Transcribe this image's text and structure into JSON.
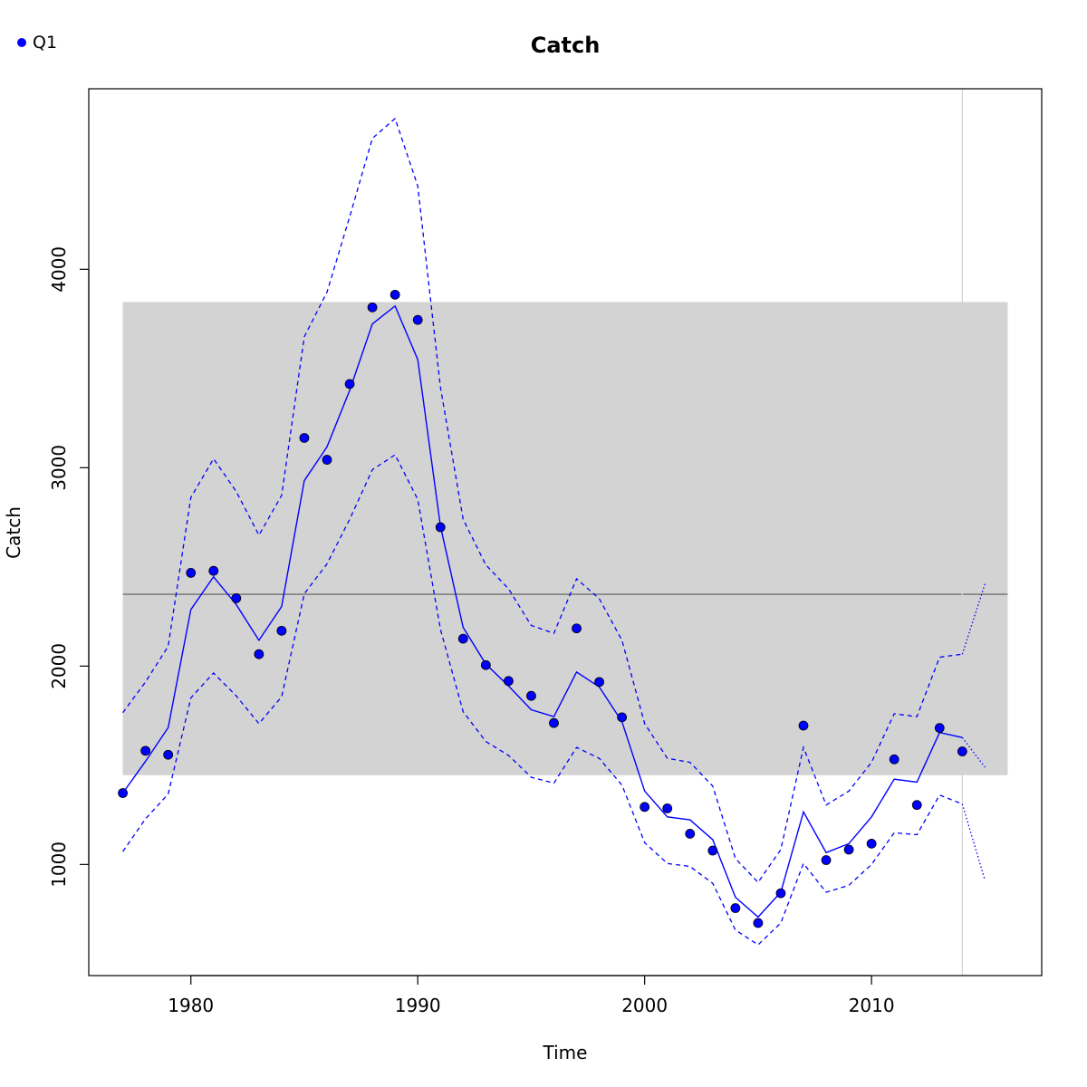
{
  "chart_data": {
    "type": "line",
    "title": "Catch",
    "xlabel": "Time",
    "ylabel": "Catch",
    "xlim": [
      1975.5,
      2017.5
    ],
    "ylim": [
      440,
      4910
    ],
    "x_ticks": [
      1980,
      1990,
      2000,
      2010
    ],
    "y_ticks": [
      1000,
      2000,
      3000,
      4000
    ],
    "legend": {
      "position": "top-left",
      "entries": [
        {
          "label": "Q1",
          "color": "#0000ff",
          "marker": "point"
        }
      ]
    },
    "reference_band": {
      "x_range": [
        1977,
        2016
      ],
      "y_range": [
        1450,
        3835
      ],
      "color": "#d3d3d3"
    },
    "reference_line": {
      "x_range": [
        1977,
        2016
      ],
      "y": 2362,
      "color": "#808080"
    },
    "vertical_line": {
      "x": 2014,
      "color": "#d3d3d3"
    },
    "colors": {
      "series": "#0000ff",
      "band": "#d3d3d3",
      "ref_line": "#808080"
    },
    "series": [
      {
        "role": "observed",
        "type": "scatter",
        "color": "#0000ff",
        "x": [
          1977,
          1978,
          1979,
          1980,
          1981,
          1982,
          1983,
          1984,
          1985,
          1986,
          1987,
          1988,
          1989,
          1990,
          1991,
          1992,
          1993,
          1994,
          1995,
          1996,
          1997,
          1998,
          1999,
          2000,
          2001,
          2002,
          2003,
          2004,
          2005,
          2006,
          2007,
          2008,
          2009,
          2010,
          2011,
          2012,
          2013,
          2014
        ],
        "y": [
          1360,
          1573,
          1553,
          2470,
          2480,
          2342,
          2060,
          2178,
          3150,
          3040,
          3422,
          3808,
          3872,
          3745,
          2700,
          2138,
          2005,
          1925,
          1850,
          1713,
          2190,
          1920,
          1742,
          1290,
          1283,
          1155,
          1070,
          780,
          705,
          855,
          1700,
          1022,
          1075,
          1105,
          1530,
          1300,
          1688,
          1570
        ]
      },
      {
        "role": "fitted",
        "type": "line",
        "style": "solid",
        "color": "#0000ff",
        "x": [
          1977,
          1978,
          1979,
          1980,
          1981,
          1982,
          1983,
          1984,
          1985,
          1986,
          1987,
          1988,
          1989,
          1990,
          1991,
          1992,
          1993,
          1994,
          1995,
          1996,
          1997,
          1998,
          1999,
          2000,
          2001,
          2002,
          2003,
          2004,
          2005,
          2006,
          2007,
          2008,
          2009,
          2010,
          2011,
          2012,
          2013,
          2014
        ],
        "y": [
          1360,
          1520,
          1690,
          2285,
          2450,
          2310,
          2130,
          2300,
          2935,
          3105,
          3390,
          3725,
          3815,
          3545,
          2705,
          2195,
          2010,
          1900,
          1780,
          1745,
          1970,
          1895,
          1720,
          1370,
          1240,
          1225,
          1125,
          835,
          735,
          860,
          1265,
          1060,
          1105,
          1240,
          1430,
          1415,
          1665,
          1640
        ]
      },
      {
        "role": "upper",
        "type": "line",
        "style": "dashed",
        "color": "#0000ff",
        "x": [
          1977,
          1978,
          1979,
          1980,
          1981,
          1982,
          1983,
          1984,
          1985,
          1986,
          1987,
          1988,
          1989,
          1990,
          1991,
          1992,
          1993,
          1994,
          1995,
          1996,
          1997,
          1998,
          1999,
          2000,
          2001,
          2002,
          2003,
          2004,
          2005,
          2006,
          2007,
          2008,
          2009,
          2010,
          2011,
          2012,
          2013,
          2014
        ],
        "y": [
          1765,
          1920,
          2100,
          2850,
          3045,
          2880,
          2660,
          2860,
          3660,
          3885,
          4265,
          4660,
          4760,
          4420,
          3405,
          2740,
          2510,
          2390,
          2205,
          2165,
          2440,
          2340,
          2130,
          1710,
          1535,
          1515,
          1395,
          1030,
          910,
          1075,
          1590,
          1300,
          1370,
          1515,
          1760,
          1745,
          2045,
          2060
        ]
      },
      {
        "role": "lower",
        "type": "line",
        "style": "dashed",
        "color": "#0000ff",
        "x": [
          1977,
          1978,
          1979,
          1980,
          1981,
          1982,
          1983,
          1984,
          1985,
          1986,
          1987,
          1988,
          1989,
          1990,
          1991,
          1992,
          1993,
          1994,
          1995,
          1996,
          1997,
          1998,
          1999,
          2000,
          2001,
          2002,
          2003,
          2004,
          2005,
          2006,
          2007,
          2008,
          2009,
          2010,
          2011,
          2012,
          2013,
          2014
        ],
        "y": [
          1065,
          1230,
          1355,
          1840,
          1965,
          1850,
          1710,
          1845,
          2365,
          2515,
          2740,
          2990,
          3065,
          2840,
          2185,
          1770,
          1620,
          1550,
          1440,
          1410,
          1590,
          1535,
          1400,
          1110,
          1005,
          990,
          905,
          670,
          595,
          705,
          1005,
          860,
          895,
          1000,
          1160,
          1150,
          1350,
          1305
        ]
      },
      {
        "role": "projection",
        "type": "line",
        "style": "dotted",
        "color": "#0000ff",
        "x": [
          2014,
          2015
        ],
        "y": [
          1640,
          1490
        ],
        "upper": [
          2060,
          2415
        ],
        "lower": [
          1305,
          920
        ]
      }
    ]
  }
}
